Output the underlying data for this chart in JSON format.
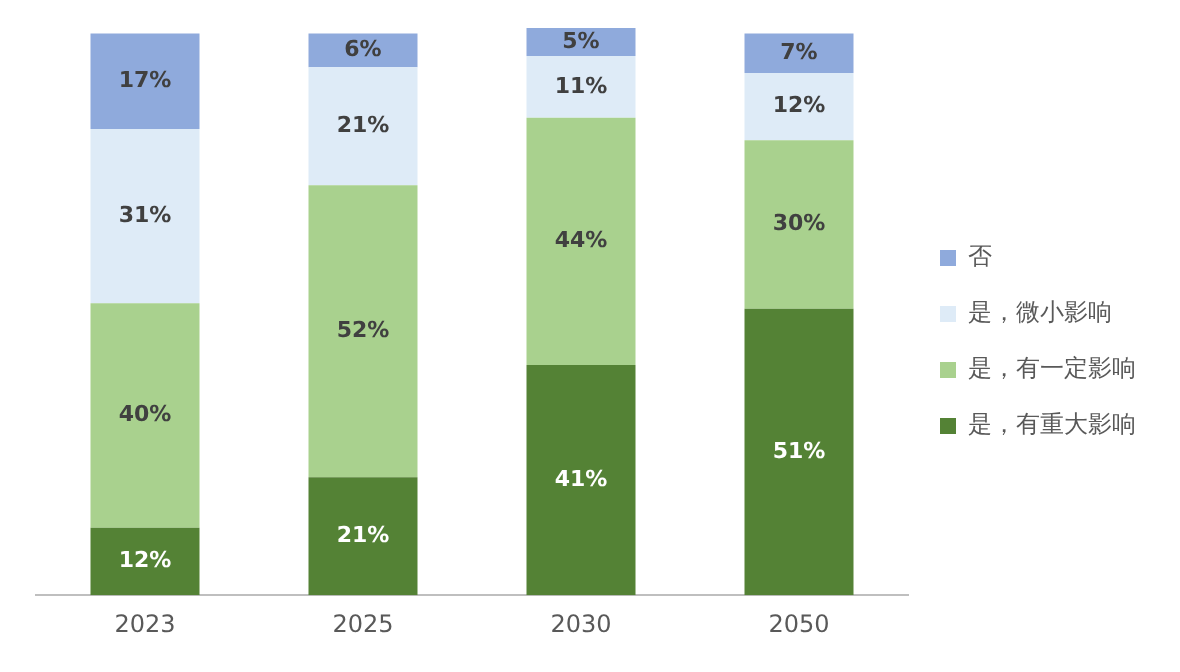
{
  "chart_data": {
    "type": "bar",
    "stacked": true,
    "categories": [
      "2023",
      "2025",
      "2030",
      "2050"
    ],
    "series": [
      {
        "name": "是，有重大影响",
        "color": "#548235",
        "values": [
          12,
          21,
          41,
          51
        ],
        "value_labels": [
          "12%",
          "21%",
          "41%",
          "51%"
        ]
      },
      {
        "name": "是，有一定影响",
        "color": "#a9d18e",
        "values": [
          40,
          52,
          44,
          30
        ],
        "value_labels": [
          "40%",
          "52%",
          "44%",
          "30%"
        ]
      },
      {
        "name": "是，微小影响",
        "color": "#deebf7",
        "values": [
          31,
          21,
          11,
          12
        ],
        "value_labels": [
          "31%",
          "21%",
          "11%",
          "12%"
        ]
      },
      {
        "name": "否",
        "color": "#8faadc",
        "values": [
          17,
          6,
          5,
          7
        ],
        "value_labels": [
          "17%",
          "6%",
          "5%",
          "7%"
        ]
      }
    ],
    "tick_labels": "x",
    "grid": false,
    "legend": "right"
  }
}
